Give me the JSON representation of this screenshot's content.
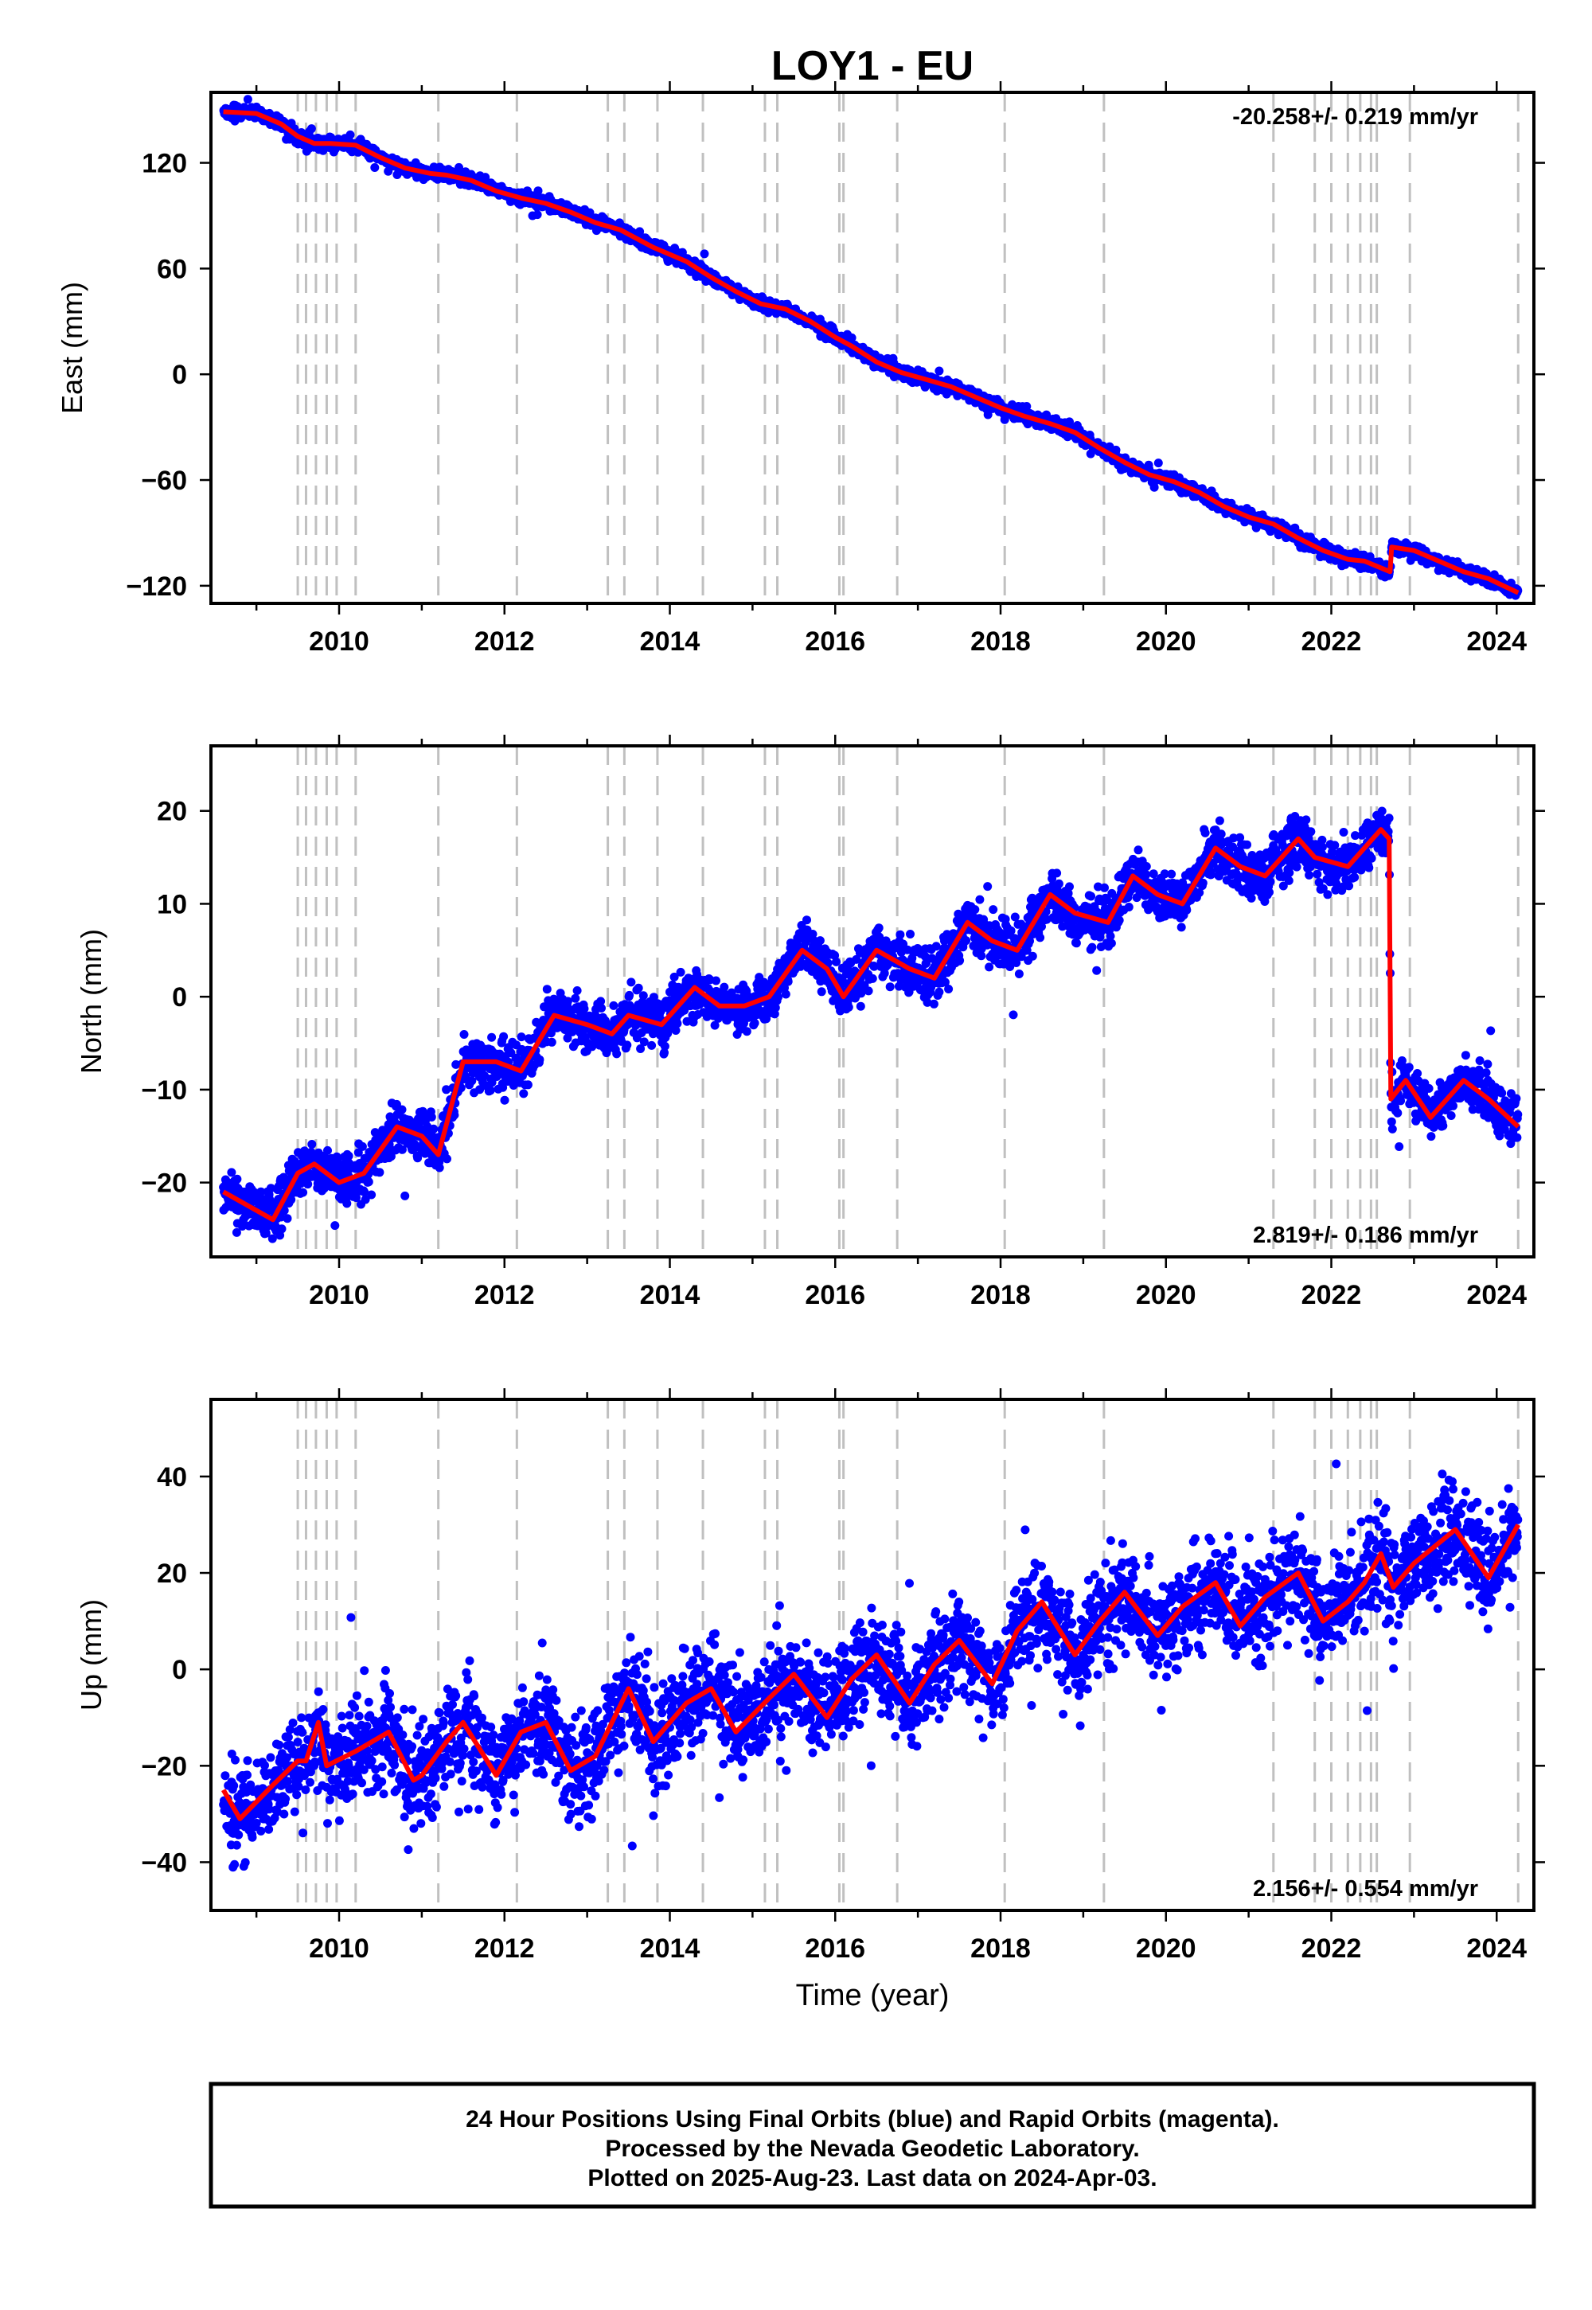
{
  "figure": {
    "title": "LOY1 - EU",
    "xlabel": "Time (year)",
    "footer": [
      "24 Hour Positions Using Final Orbits (blue) and Rapid Orbits (magenta).",
      "Processed by the Nevada Geodetic Laboratory.",
      "Plotted on 2025-Aug-23. Last data on 2024-Apr-03."
    ],
    "colors": {
      "final_orbits": "#0000ff",
      "model": "#ff0000",
      "equipment_changes": "#c0c0c0"
    }
  },
  "chart_data": [
    {
      "type": "scatter",
      "name": "east",
      "ylabel": "East (mm)",
      "rate_label": "-20.258+/- 0.219 mm/yr",
      "rate_position": "top-right",
      "xlim": [
        2008.45,
        2024.45
      ],
      "ylim": [
        -130,
        160
      ],
      "xticks": [
        2010,
        2012,
        2014,
        2016,
        2018,
        2020,
        2022,
        2024
      ],
      "yticks": [
        -120,
        -60,
        0,
        60,
        120
      ],
      "start": [
        2008.6,
        149
      ],
      "end": [
        2024.26,
        -124
      ],
      "rate": -20.258,
      "scatter_sd": 1.8,
      "seasonal_amp": 2,
      "offsets": [
        [
          2022.72,
          15
        ]
      ],
      "series": [
        {
          "name": "model",
          "x": [
            2008.6,
            2009.0,
            2009.3,
            2009.5,
            2009.7,
            2009.9,
            2010.2,
            2010.5,
            2010.8,
            2011.1,
            2011.3,
            2011.6,
            2011.9,
            2012.2,
            2012.5,
            2012.8,
            2013.1,
            2013.4,
            2013.8,
            2014.2,
            2014.5,
            2014.8,
            2015.1,
            2015.4,
            2015.7,
            2016.0,
            2016.2,
            2016.5,
            2016.8,
            2017.1,
            2017.4,
            2017.7,
            2018.0,
            2018.3,
            2018.6,
            2018.9,
            2019.2,
            2019.5,
            2019.8,
            2020.1,
            2020.4,
            2020.7,
            2021.0,
            2021.3,
            2021.6,
            2021.9,
            2022.2,
            2022.4,
            2022.71,
            2022.73,
            2023.0,
            2023.3,
            2023.6,
            2023.9,
            2024.26
          ],
          "y": [
            149,
            148,
            142,
            135,
            131,
            131,
            130,
            123,
            117,
            114,
            113,
            110,
            104,
            100,
            97,
            92,
            86,
            82,
            72,
            64,
            55,
            47,
            40,
            37,
            30,
            21,
            16,
            7,
            1,
            -3,
            -7,
            -13,
            -19,
            -24,
            -28,
            -33,
            -42,
            -50,
            -57,
            -61,
            -67,
            -75,
            -81,
            -85,
            -93,
            -100,
            -105,
            -106,
            -112,
            -98,
            -100,
            -106,
            -112,
            -116,
            -124
          ]
        }
      ],
      "equipment_changes": [
        2009.5,
        2009.6,
        2009.72,
        2009.85,
        2009.97,
        2010.2,
        2011.2,
        2012.15,
        2013.25,
        2013.45,
        2013.85,
        2014.4,
        2015.15,
        2015.3,
        2016.05,
        2016.1,
        2016.75,
        2018.05,
        2019.25,
        2021.3,
        2021.8,
        2022.0,
        2022.2,
        2022.35,
        2022.48,
        2022.55,
        2022.95,
        2024.26
      ]
    },
    {
      "type": "scatter",
      "name": "north",
      "ylabel": "North (mm)",
      "rate_label": "2.819+/- 0.186 mm/yr",
      "rate_position": "bottom-right",
      "xlim": [
        2008.45,
        2024.45
      ],
      "ylim": [
        -28,
        27
      ],
      "xticks": [
        2010,
        2012,
        2014,
        2016,
        2018,
        2020,
        2022,
        2024
      ],
      "yticks": [
        -20,
        -10,
        0,
        10,
        20
      ],
      "start": [
        2008.6,
        -21
      ],
      "end": [
        2024.26,
        -14
      ],
      "rate": 2.819,
      "scatter_sd": 1.3,
      "seasonal_amp": 2.5,
      "offsets": [
        [
          2022.72,
          -29
        ]
      ],
      "series": [
        {
          "name": "model",
          "x": [
            2008.6,
            2009.2,
            2009.5,
            2009.7,
            2010.0,
            2010.3,
            2010.7,
            2011.0,
            2011.2,
            2011.5,
            2011.9,
            2012.2,
            2012.6,
            2013.0,
            2013.3,
            2013.5,
            2013.9,
            2014.3,
            2014.6,
            2014.9,
            2015.2,
            2015.6,
            2015.9,
            2016.1,
            2016.5,
            2016.9,
            2017.2,
            2017.6,
            2017.9,
            2018.2,
            2018.6,
            2018.9,
            2019.3,
            2019.6,
            2019.9,
            2020.2,
            2020.6,
            2020.9,
            2021.2,
            2021.6,
            2021.8,
            2022.2,
            2022.5,
            2022.6,
            2022.7,
            2022.72,
            2022.9,
            2023.2,
            2023.6,
            2023.9,
            2024.26
          ],
          "y": [
            -21,
            -24,
            -19,
            -18,
            -20,
            -19,
            -14,
            -15,
            -17,
            -7,
            -7,
            -8,
            -2,
            -3,
            -4,
            -2,
            -3,
            1,
            -1,
            -1,
            0,
            5,
            3,
            0,
            5,
            3,
            2,
            8,
            6,
            5,
            11,
            9,
            8,
            13,
            11,
            10,
            16,
            14,
            13,
            17,
            15,
            14,
            17,
            18,
            17,
            -11,
            -9,
            -13,
            -9,
            -11,
            -14
          ]
        }
      ],
      "equipment_changes": [
        2009.5,
        2009.6,
        2009.72,
        2009.85,
        2009.97,
        2010.2,
        2011.2,
        2012.15,
        2013.25,
        2013.45,
        2013.85,
        2014.4,
        2015.15,
        2015.3,
        2016.05,
        2016.1,
        2016.75,
        2018.05,
        2019.25,
        2021.3,
        2021.8,
        2022.0,
        2022.2,
        2022.35,
        2022.48,
        2022.55,
        2022.95,
        2024.26
      ]
    },
    {
      "type": "scatter",
      "name": "up",
      "ylabel": "Up (mm)",
      "rate_label": "2.156+/- 0.554 mm/yr",
      "rate_position": "bottom-right",
      "xlim": [
        2008.45,
        2024.45
      ],
      "ylim": [
        -50,
        56
      ],
      "xticks": [
        2010,
        2012,
        2014,
        2016,
        2018,
        2020,
        2022,
        2024
      ],
      "yticks": [
        -40,
        -20,
        0,
        20,
        40
      ],
      "start": [
        2008.6,
        -25
      ],
      "end": [
        2024.26,
        30
      ],
      "rate": 2.156,
      "scatter_sd": 5,
      "seasonal_amp": 5,
      "offsets": [],
      "series": [
        {
          "name": "model",
          "x": [
            2008.6,
            2008.8,
            2009.2,
            2009.5,
            2009.6,
            2009.75,
            2009.85,
            2010.2,
            2010.6,
            2010.9,
            2011.0,
            2011.3,
            2011.5,
            2011.9,
            2012.2,
            2012.5,
            2012.8,
            2013.1,
            2013.5,
            2013.8,
            2014.2,
            2014.5,
            2014.8,
            2015.2,
            2015.5,
            2015.9,
            2016.2,
            2016.5,
            2016.9,
            2017.2,
            2017.5,
            2017.9,
            2018.2,
            2018.5,
            2018.9,
            2019.2,
            2019.5,
            2019.9,
            2020.2,
            2020.6,
            2020.9,
            2021.2,
            2021.6,
            2021.9,
            2022.2,
            2022.4,
            2022.6,
            2022.75,
            2023.0,
            2023.5,
            2023.9,
            2024.26
          ],
          "y": [
            -25,
            -31,
            -24,
            -19,
            -19,
            -11,
            -20,
            -17,
            -13,
            -23,
            -22,
            -15,
            -11,
            -22,
            -13,
            -11,
            -21,
            -18,
            -4,
            -15,
            -7,
            -4,
            -13,
            -6,
            -1,
            -10,
            -2,
            3,
            -7,
            1,
            6,
            -3,
            8,
            14,
            3,
            10,
            16,
            7,
            13,
            18,
            9,
            15,
            20,
            10,
            14,
            18,
            24,
            17,
            22,
            29,
            19,
            30
          ]
        }
      ],
      "equipment_changes": [
        2009.5,
        2009.6,
        2009.72,
        2009.85,
        2009.97,
        2010.2,
        2011.2,
        2012.15,
        2013.25,
        2013.45,
        2013.85,
        2014.4,
        2015.15,
        2015.3,
        2016.05,
        2016.1,
        2016.75,
        2018.05,
        2019.25,
        2021.3,
        2021.8,
        2022.0,
        2022.2,
        2022.35,
        2022.48,
        2022.55,
        2022.95,
        2024.26
      ]
    }
  ]
}
